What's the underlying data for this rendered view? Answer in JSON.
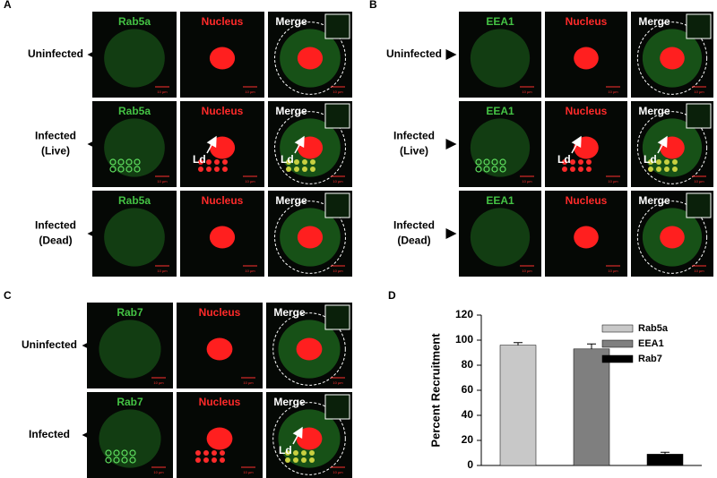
{
  "panels": [
    {
      "label": "A",
      "columns": [
        "Rab5a",
        "Nucleus",
        "Merge"
      ],
      "rows": [
        [
          "Uninfected"
        ],
        [
          "Infected",
          "(Live)"
        ],
        [
          "Infected",
          "(Dead)"
        ]
      ],
      "pointer_label": "Ld",
      "scale_label": "10 µm"
    },
    {
      "label": "B",
      "columns": [
        "EEA1",
        "Nucleus",
        "Merge"
      ],
      "rows": [
        [
          "Uninfected"
        ],
        [
          "Infected",
          "(Live)"
        ],
        [
          "Infected",
          "(Dead)"
        ]
      ],
      "pointer_label": "Ld",
      "scale_label": "10 µm"
    },
    {
      "label": "C",
      "columns": [
        "Rab7",
        "Nucleus",
        "Merge"
      ],
      "rows": [
        [
          "Uninfected"
        ],
        [
          "Infected"
        ]
      ],
      "pointer_label": "Ld",
      "scale_label": "10 µm"
    }
  ],
  "chart_panel_label": "D",
  "chart_data": {
    "type": "bar",
    "y_label": "Percent Recruitment",
    "ylim": [
      0,
      120
    ],
    "yticks": [
      0,
      20,
      40,
      60,
      80,
      100,
      120
    ],
    "series": [
      {
        "name": "Rab5a",
        "color": "#c8c8c8",
        "values": [
          96
        ],
        "errors": [
          2
        ]
      },
      {
        "name": "EEA1",
        "color": "#7f7f7f",
        "values": [
          93
        ],
        "errors": [
          4
        ]
      },
      {
        "name": "Rab7",
        "color": "#000000",
        "values": [
          9
        ],
        "errors": [
          1.5
        ]
      }
    ],
    "legend": "upper right"
  }
}
